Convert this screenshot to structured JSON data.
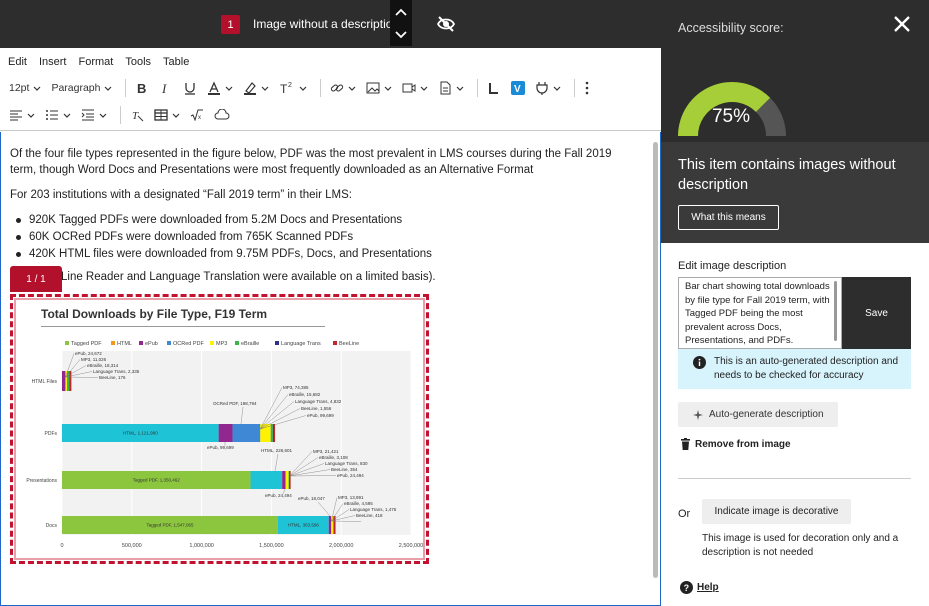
{
  "topbar": {
    "issue_count": "1",
    "issue_title": "Image without a description"
  },
  "menu": [
    "Edit",
    "Insert",
    "Format",
    "Tools",
    "Table"
  ],
  "toolbar": {
    "font_size": "12pt",
    "block_format": "Paragraph"
  },
  "content": {
    "para1": "Of the four file types represented in the figure below, PDF was the most prevalent in LMS courses during the Fall 2019 term, though Word Docs and Presentations were most frequently downloaded as an Alternative Format",
    "para2": "For 203 institutions with a designated “Fall 2019 term” in their LMS:",
    "bullets": [
      "920K Tagged PDFs were downloaded from 5.2M Docs and Presentations",
      "60K OCRed PDFs were downloaded from 765K Scanned PDFs",
      "420K HTML files were downloaded from 9.75M PDFs, Docs, and Presentations"
    ],
    "para3": "Line Reader and Language Translation were available on a limited basis).",
    "pager": "1 / 1"
  },
  "chart_data": {
    "type": "bar",
    "orientation": "horizontal",
    "stacked": true,
    "title": "Total Downloads by File Type, F19 Term",
    "categories": [
      "HTML Files",
      "PDFs",
      "Presentations",
      "Docs"
    ],
    "xlim": [
      0,
      2500000
    ],
    "xticks": [
      "0",
      "500,000",
      "1,000,000",
      "1,500,000",
      "2,000,000",
      "2,500,000"
    ],
    "legend_position": "top",
    "series": [
      {
        "name": "Tagged PDF",
        "color": "#8cc63f",
        "values": [
          0,
          0,
          1350462,
          1547065
        ]
      },
      {
        "name": "HTML",
        "color": "#f7941d",
        "values": [
          0,
          1121980,
          226601,
          363596
        ]
      },
      {
        "name": "ePub",
        "color": "#92278f",
        "values": [
          24672,
          99699,
          24494,
          18047
        ]
      },
      {
        "name": "OCRed PDF",
        "color": "#3f88d6",
        "values": [
          0,
          198794,
          0,
          0
        ]
      },
      {
        "name": "MP3",
        "color": "#fff200",
        "values": [
          11026,
          74385,
          21421,
          13991
        ]
      },
      {
        "name": "eBraille",
        "color": "#39b54a",
        "values": [
          18314,
          15682,
          3108,
          4595
        ]
      },
      {
        "name": "Language Trans",
        "color": "#2e3192",
        "values": [
          2335,
          4832,
          830,
          1475
        ]
      },
      {
        "name": "BeeLine",
        "color": "#c1272d",
        "values": [
          176,
          1556,
          354,
          418
        ]
      }
    ],
    "labels": {
      "html_files": [
        "ePub, 24,672",
        "MP3, 11,026",
        "eBraille, 18,314",
        "Language Trans, 2,335",
        "BeeLine, 176"
      ],
      "pdfs": [
        "HTML, 1,121,980",
        "OCRed PDF, 198,794",
        "MP3, 74,385",
        "eBraille, 15,682",
        "Language Trans, 4,832",
        "BeeLine, 1,556",
        "ePub, 99,699"
      ],
      "presentations": [
        "Tagged PDF, 1,350,462",
        "HTML, 226,601",
        "MP3, 21,421",
        "eBraille, 3,108",
        "Language Trans, 830",
        "BeeLine, 354",
        "ePub, 24,494"
      ],
      "docs": [
        "Tagged PDF, 1,547,065",
        "HTML, 363,596",
        "ePub, 18,047",
        "MP3, 13,991",
        "eBraille, 4,595",
        "Language Trans, 1,475",
        "BeeLine, 418"
      ]
    }
  },
  "panel": {
    "score_label": "Accessibility score:",
    "score_value": "75%",
    "score_fraction": 0.75,
    "issue_message": "This item contains images without description",
    "what_button": "What this means",
    "edit_label": "Edit image description",
    "description_value": "Bar chart showing total downloads by file type for Fall 2019 term, with Tagged PDF being the most prevalent across Docs, Presentations, and PDFs.",
    "save_button": "Save",
    "info_text": "This is an auto-generated description and needs to be checked for accuracy",
    "auto_button": "Auto-generate description",
    "remove_button": "Remove from image",
    "or_label": "Or",
    "decorative_button": "Indicate image is decorative",
    "decorative_note": "This image is used for decoration only and a description is not needed",
    "help_label": "Help"
  },
  "colors": {
    "accent_red": "#b3102b",
    "gauge_green": "#a6ce39",
    "dark": "#2d2d2d",
    "info_bg": "#d7f3fb"
  }
}
